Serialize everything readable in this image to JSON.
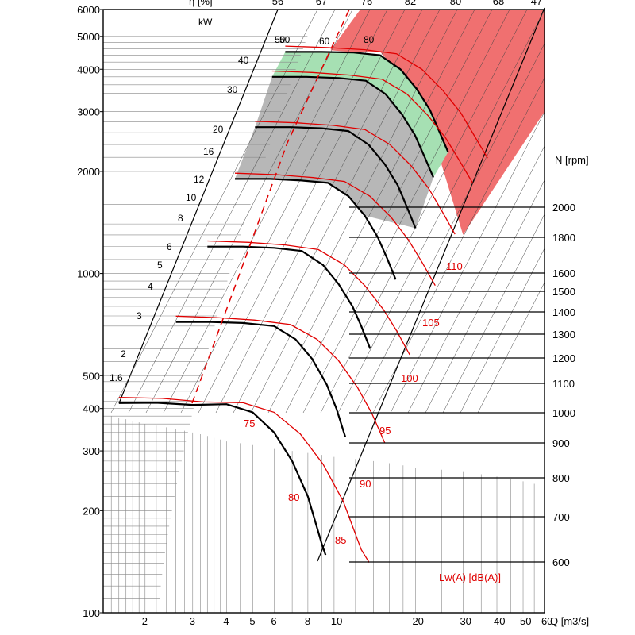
{
  "chart_data": {
    "type": "line",
    "title": "",
    "xlabel": "Q [m3/s]",
    "ylabel": "",
    "y_unit_label": "kW",
    "top_axis_label": "η [%]",
    "speed_axis_label": "N [rpm]",
    "noise_label": "Lw(A)  [dB(A)]",
    "x_scale": "log",
    "y_scale": "log",
    "xlim": [
      1.4,
      60
    ],
    "ylim": [
      100,
      6000
    ],
    "grid": true,
    "x_ticks": [
      "2",
      "3",
      "4",
      "5",
      "6",
      "8",
      "10",
      "20",
      "30",
      "40",
      "50",
      "60"
    ],
    "y_ticks": [
      "100",
      "200",
      "300",
      "400",
      "500",
      "1000",
      "2000",
      "3000",
      "4000",
      "5000",
      "6000"
    ],
    "efficiency_ticks": [
      "56",
      "67",
      "76",
      "82",
      "80",
      "68",
      "47"
    ],
    "rpm_ticks": [
      "2000",
      "1800",
      "1600",
      "1500",
      "1400",
      "1300",
      "1200",
      "1100",
      "1000",
      "900",
      "800",
      "700",
      "600"
    ],
    "power_labels": [
      "50",
      "40",
      "30",
      "20",
      "16",
      "12",
      "10",
      "8",
      "6",
      "5",
      "4",
      "3",
      "2",
      "1.6"
    ],
    "efficiency_labels": [
      "50",
      "60",
      "80"
    ],
    "noise_levels": [
      "75",
      "80",
      "85",
      "90",
      "95",
      "100",
      "105",
      "110"
    ],
    "zones": [
      {
        "name": "",
        "color": "#f07070"
      },
      {
        "name": "",
        "color": "#a6e0b3"
      },
      {
        "name": "",
        "color": "#b7b7b7"
      }
    ],
    "series": [
      {
        "values": [
          [
            1.6,
            415
          ],
          [
            2.2,
            416
          ],
          [
            3.0,
            410
          ],
          [
            4.0,
            412
          ],
          [
            5.0,
            390
          ],
          [
            6.0,
            340
          ],
          [
            7.0,
            280
          ],
          [
            8.0,
            220
          ],
          [
            9.0,
            160
          ],
          [
            9.3,
            148
          ]
        ]
      },
      {
        "values": [
          [
            2.6,
            720
          ],
          [
            3.5,
            720
          ],
          [
            4.6,
            715
          ],
          [
            6.0,
            700
          ],
          [
            7.2,
            640
          ],
          [
            8.3,
            560
          ],
          [
            9.4,
            470
          ],
          [
            10.2,
            400
          ],
          [
            11.0,
            330
          ]
        ]
      },
      {
        "values": [
          [
            3.4,
            1200
          ],
          [
            4.6,
            1200
          ],
          [
            6.0,
            1190
          ],
          [
            7.6,
            1165
          ],
          [
            9.1,
            1060
          ],
          [
            10.4,
            930
          ],
          [
            11.7,
            800
          ],
          [
            12.6,
            700
          ],
          [
            13.6,
            600
          ]
        ]
      },
      {
        "values": [
          [
            4.3,
            1900
          ],
          [
            5.8,
            1900
          ],
          [
            7.6,
            1880
          ],
          [
            9.5,
            1850
          ],
          [
            11.3,
            1690
          ],
          [
            13.0,
            1480
          ],
          [
            14.5,
            1280
          ],
          [
            15.7,
            1110
          ],
          [
            16.9,
            960
          ]
        ]
      },
      {
        "values": [
          [
            5.1,
            2700
          ],
          [
            6.9,
            2700
          ],
          [
            9.0,
            2680
          ],
          [
            11.3,
            2630
          ],
          [
            13.4,
            2400
          ],
          [
            15.4,
            2100
          ],
          [
            17.2,
            1820
          ],
          [
            18.6,
            1570
          ],
          [
            20.0,
            1360
          ]
        ]
      },
      {
        "values": [
          [
            5.9,
            3800
          ],
          [
            7.9,
            3800
          ],
          [
            10.4,
            3770
          ],
          [
            13.1,
            3700
          ],
          [
            15.5,
            3380
          ],
          [
            17.8,
            2950
          ],
          [
            19.9,
            2560
          ],
          [
            21.6,
            2210
          ],
          [
            23.3,
            1920
          ]
        ]
      },
      {
        "values": [
          [
            6.6,
            4500
          ],
          [
            9.0,
            4500
          ],
          [
            11.8,
            4480
          ],
          [
            14.8,
            4400
          ],
          [
            17.6,
            4000
          ],
          [
            20.2,
            3500
          ],
          [
            22.6,
            3040
          ],
          [
            24.5,
            2620
          ],
          [
            26.4,
            2280
          ]
        ]
      }
    ]
  }
}
